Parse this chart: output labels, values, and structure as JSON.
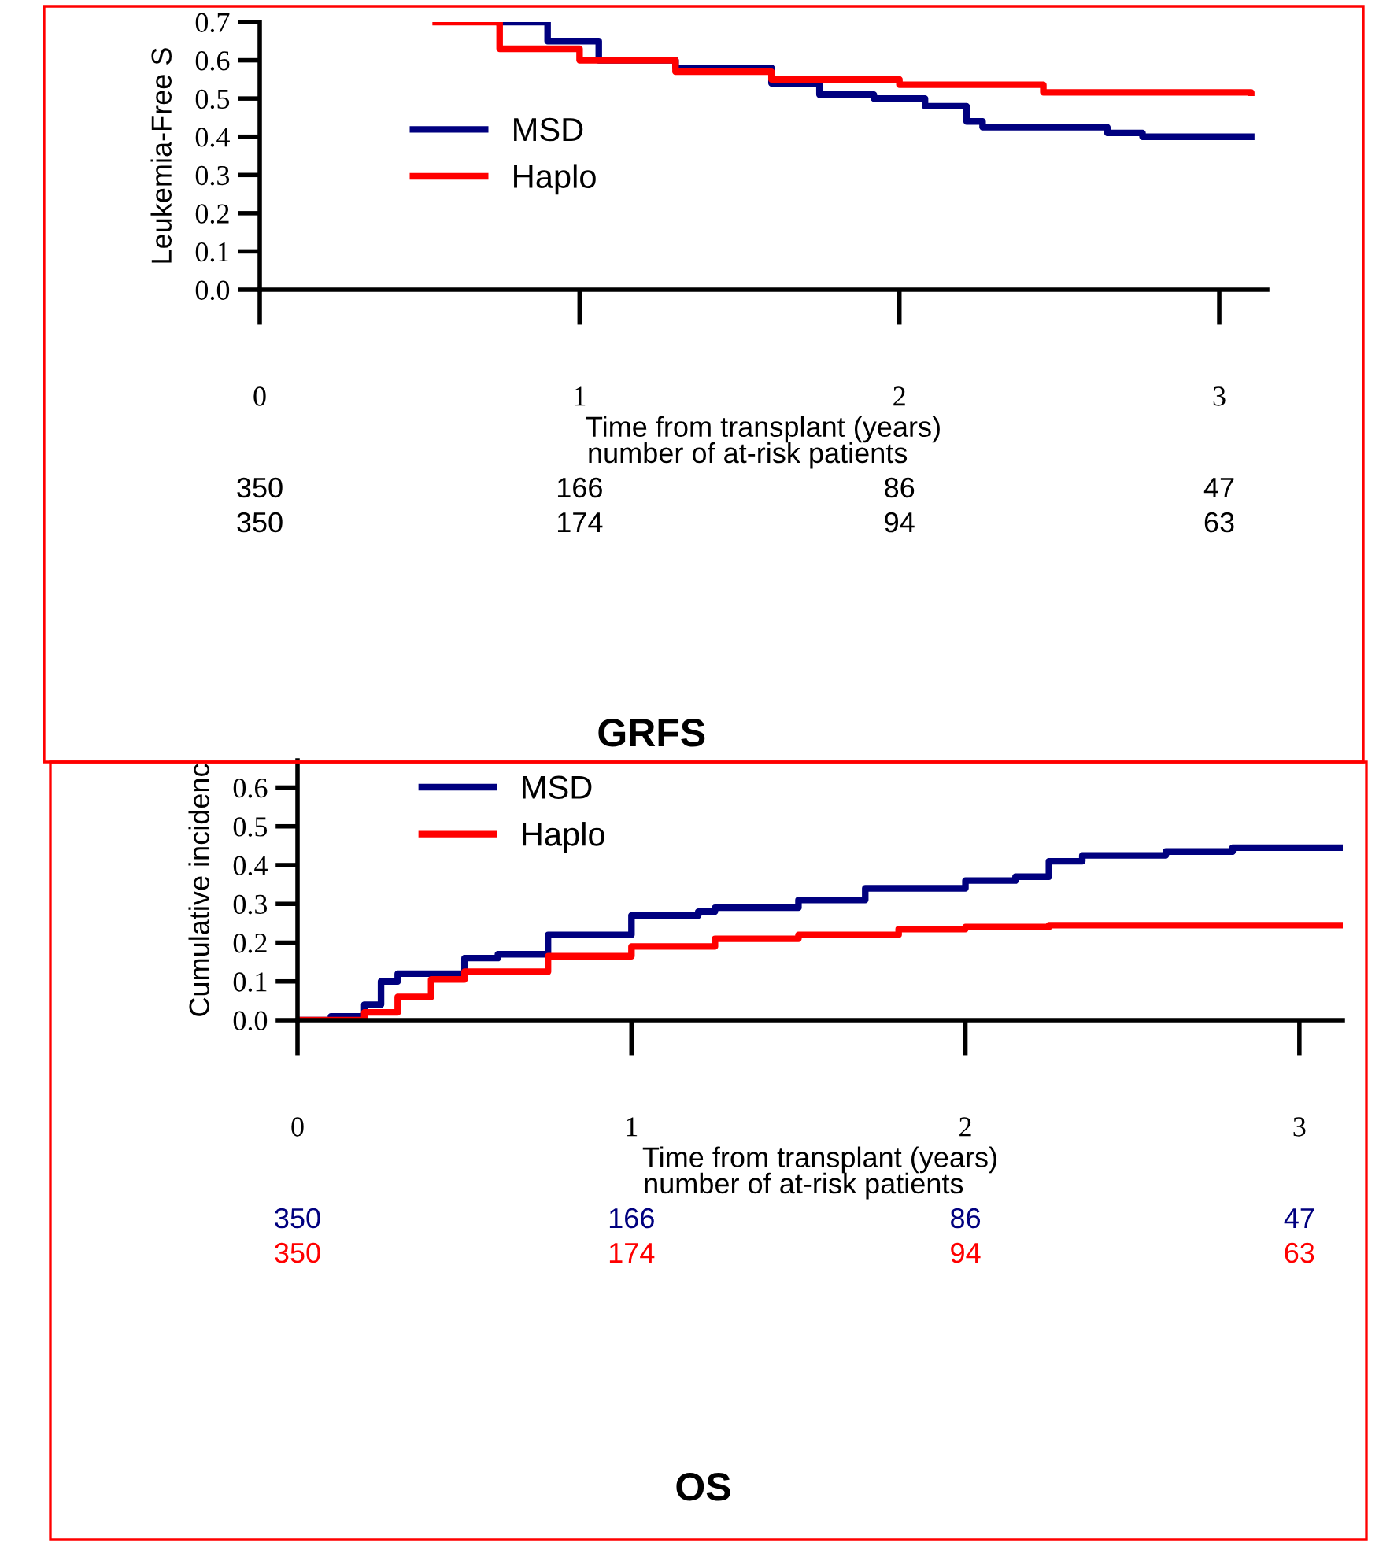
{
  "chart_data": [
    {
      "type": "step",
      "title": "GRFS",
      "xlabel": "Time from transplant (years)",
      "ylabel": "Leukemia-Free S",
      "xlim": [
        0,
        3.15
      ],
      "ylim": [
        0,
        0.7
      ],
      "xticks": [
        0,
        1,
        2,
        3
      ],
      "yticks": [
        {
          "value": 0,
          "label": "0.0"
        },
        0.1,
        0.2,
        0.3,
        0.4,
        0.5,
        0.6,
        0.7
      ],
      "legend": "center left",
      "grid": false,
      "series": [
        {
          "name": "MSD",
          "color": "#00007f",
          "x": [
            0.75,
            0.9,
            1.06,
            1.3,
            1.6,
            1.75,
            1.92,
            2.08,
            2.21,
            2.26,
            2.65,
            2.76,
            3.1
          ],
          "values": [
            0.7,
            0.65,
            0.6,
            0.58,
            0.54,
            0.51,
            0.5,
            0.48,
            0.44,
            0.425,
            0.41,
            0.4,
            0.4
          ]
        },
        {
          "name": "Haplo",
          "color": "#ff0000",
          "x": [
            0.55,
            0.75,
            1.0,
            1.3,
            1.6,
            2.0,
            2.45,
            3.1
          ],
          "values": [
            0.7,
            0.63,
            0.6,
            0.57,
            0.55,
            0.536,
            0.516,
            0.515
          ]
        }
      ],
      "annotations": [
        "number of at-risk patients",
        "350",
        "166",
        "86",
        "47",
        "350",
        "174",
        "94",
        "63"
      ]
    },
    {
      "type": "step",
      "title": "OS",
      "xlabel": "Time from transplant (years)",
      "ylabel": "Cumulative incidenc",
      "xlim": [
        0,
        3.13
      ],
      "ylim": [
        0,
        0.67
      ],
      "xticks": [
        0,
        1,
        2,
        3
      ],
      "yticks": [
        {
          "value": 0,
          "label": "0.0"
        },
        0.1,
        0.2,
        0.3,
        0.4,
        0.5,
        0.6
      ],
      "legend": "upper left",
      "grid": false,
      "series": [
        {
          "name": "MSD",
          "color": "#00007f",
          "x": [
            0,
            0.1,
            0.2,
            0.25,
            0.3,
            0.5,
            0.6,
            0.75,
            1.0,
            1.2,
            1.25,
            1.5,
            1.7,
            2.0,
            2.15,
            2.25,
            2.35,
            2.6,
            2.8,
            3.13
          ],
          "values": [
            0,
            0.01,
            0.04,
            0.1,
            0.12,
            0.16,
            0.17,
            0.22,
            0.27,
            0.28,
            0.29,
            0.31,
            0.34,
            0.36,
            0.37,
            0.41,
            0.425,
            0.435,
            0.445,
            0.445
          ]
        },
        {
          "name": "Haplo",
          "color": "#ff0000",
          "x": [
            0,
            0.2,
            0.3,
            0.4,
            0.5,
            0.75,
            1.0,
            1.25,
            1.5,
            1.8,
            2.0,
            2.25,
            3.13
          ],
          "values": [
            0,
            0.02,
            0.06,
            0.105,
            0.125,
            0.165,
            0.19,
            0.21,
            0.22,
            0.235,
            0.24,
            0.245,
            0.245
          ]
        }
      ],
      "annotations": [
        "number of at-risk patients",
        "350",
        "166",
        "86",
        "47",
        "350",
        "174",
        "94",
        "63"
      ]
    }
  ]
}
